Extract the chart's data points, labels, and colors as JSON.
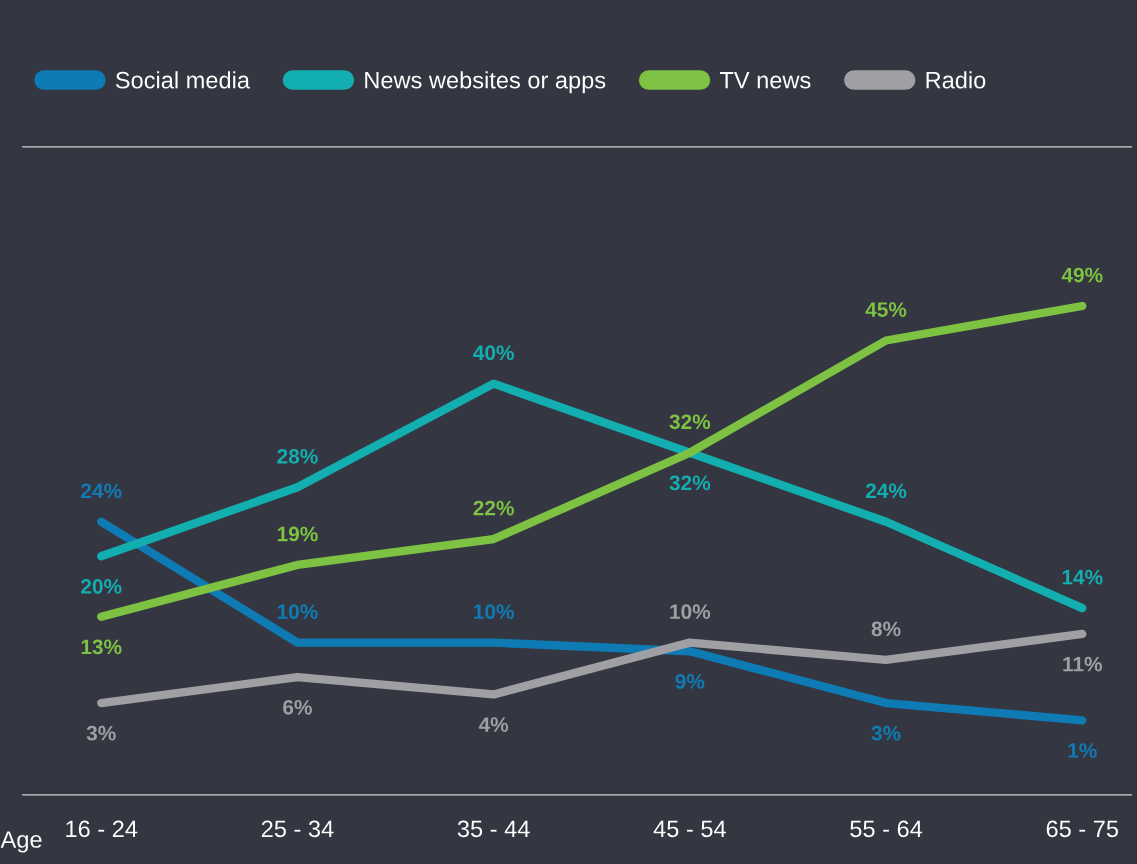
{
  "chart_data": {
    "type": "line",
    "xlabel": "Age",
    "categories": [
      "16 - 24",
      "25 - 34",
      "35 - 44",
      "45 - 54",
      "55 - 64",
      "65 - 75"
    ],
    "series": [
      {
        "name": "Social media",
        "color": "#0e7bb5",
        "values": [
          24,
          10,
          10,
          9,
          3,
          1
        ],
        "value_labels": [
          "24%",
          "10%",
          "10%",
          "9%",
          "3%",
          "1%"
        ]
      },
      {
        "name": "News websites or apps",
        "color": "#12aeb0",
        "values": [
          20,
          28,
          40,
          32,
          24,
          14
        ],
        "value_labels": [
          "20%",
          "28%",
          "40%",
          "32%",
          "24%",
          "14%"
        ]
      },
      {
        "name": "TV news",
        "color": "#7dc242",
        "values": [
          13,
          19,
          22,
          32,
          45,
          49
        ],
        "value_labels": [
          "13%",
          "19%",
          "22%",
          "32%",
          "45%",
          "49%"
        ]
      },
      {
        "name": "Radio",
        "color": "#a0a0a4",
        "values": [
          3,
          6,
          4,
          10,
          8,
          11
        ],
        "value_labels": [
          "3%",
          "6%",
          "4%",
          "10%",
          "8%",
          "11%"
        ]
      }
    ],
    "tick_labels": "x",
    "grid": false,
    "legend": "top left",
    "marker": "none",
    "line_style": "solid"
  }
}
